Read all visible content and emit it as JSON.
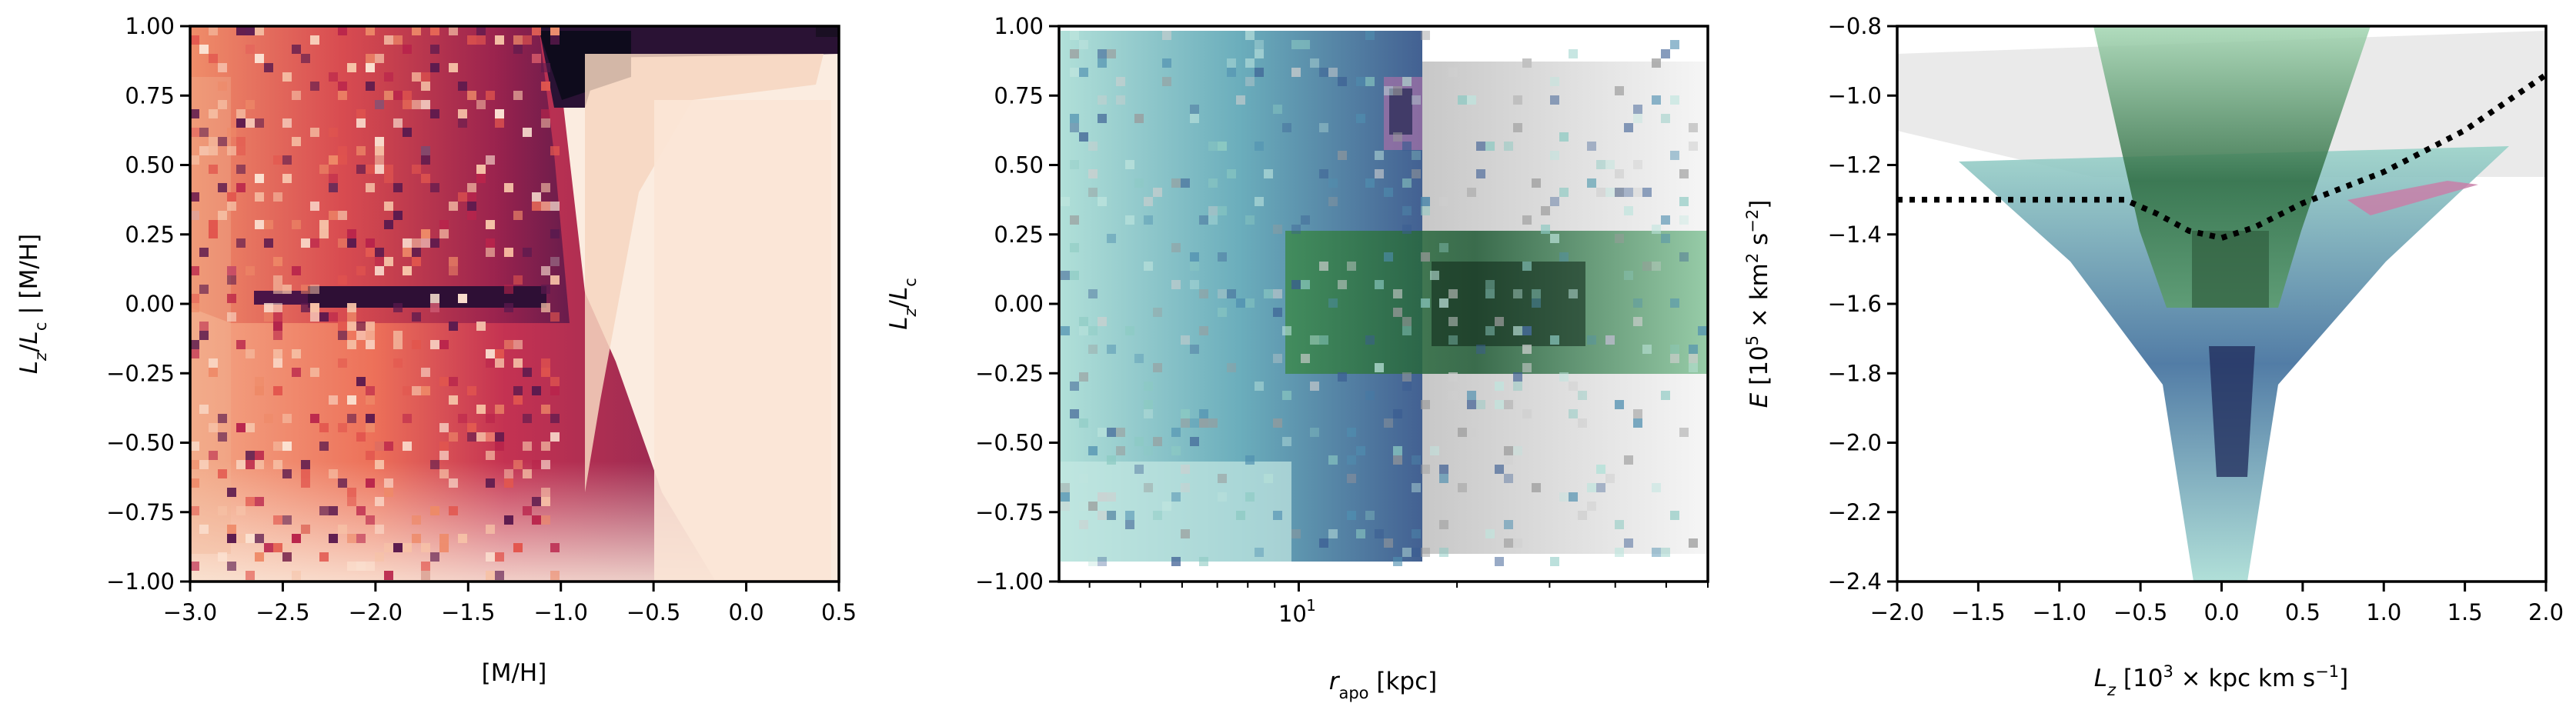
{
  "chart_data": [
    {
      "type": "heatmap",
      "xlabel": "[M/H]",
      "ylabel": "L_z/L_c | [M/H]",
      "xlim": [
        -3.0,
        0.5
      ],
      "ylim": [
        -1.0,
        1.0
      ],
      "xticks": [
        "-3.0",
        "-2.5",
        "-2.0",
        "-1.5",
        "-1.0",
        "-0.5",
        "0.0",
        "0.5"
      ],
      "yticks": [
        "-1.00",
        "-0.75",
        "-0.50",
        "-0.25",
        "0.00",
        "0.25",
        "0.50",
        "0.75",
        "1.00"
      ],
      "colormap": "rocket_r",
      "features": [
        {
          "name": "dense band near circular orbits",
          "x": [
            -1.05,
            0.5
          ],
          "y": [
            0.9,
            1.0
          ]
        },
        {
          "name": "dense horizontal band",
          "x": [
            -2.4,
            -1.1
          ],
          "y": [
            -0.05,
            0.1
          ]
        }
      ]
    },
    {
      "type": "heatmap",
      "xlabel": "r_apo [kpc]",
      "ylabel": "L_z/L_c",
      "xscale": "log",
      "xlim": [
        3.5,
        60
      ],
      "ylim": [
        -1.0,
        1.0
      ],
      "xticks": [
        "10^1"
      ],
      "yticks": [
        "-1.00",
        "-0.75",
        "-0.50",
        "-0.25",
        "0.00",
        "0.25",
        "0.50",
        "0.75",
        "1.00"
      ],
      "overlays": [
        {
          "color": "#7fbfb5",
          "x": [
            3.5,
            10.2
          ],
          "y": [
            -0.95,
            1.0
          ]
        },
        {
          "color": "#9b6fa5",
          "x": [
            8.0,
            10.2
          ],
          "y": [
            0.5,
            0.8
          ]
        },
        {
          "color": "#3e8e52",
          "x": [
            6.0,
            60
          ],
          "y": [
            -0.25,
            0.25
          ]
        },
        {
          "color": "#777777",
          "x": [
            10.2,
            60
          ],
          "y": [
            -1.0,
            1.0
          ]
        }
      ]
    },
    {
      "type": "heatmap",
      "xlabel": "L_z [10^3 × kpc km s^-1]",
      "ylabel": "E [10^5 × km^2 s^-2]",
      "xlim": [
        -2.0,
        2.0
      ],
      "ylim": [
        -2.4,
        -0.8
      ],
      "xticks": [
        "-2.0",
        "-1.5",
        "-1.0",
        "-0.5",
        "0.0",
        "0.5",
        "1.0",
        "1.5",
        "2.0"
      ],
      "yticks": [
        "-2.4",
        "-2.2",
        "-2.0",
        "-1.8",
        "-1.6",
        "-1.4",
        "-1.2",
        "-1.0",
        "-0.8"
      ],
      "dotted_line": {
        "x": [
          -2.0,
          -1.0,
          -0.6,
          -0.4,
          -0.2,
          0.0,
          0.2,
          0.5,
          1.0,
          1.5,
          2.0
        ],
        "y": [
          -1.3,
          -1.3,
          -1.3,
          -1.34,
          -1.39,
          -1.41,
          -1.38,
          -1.31,
          -1.22,
          -1.1,
          -0.94
        ]
      }
    }
  ]
}
